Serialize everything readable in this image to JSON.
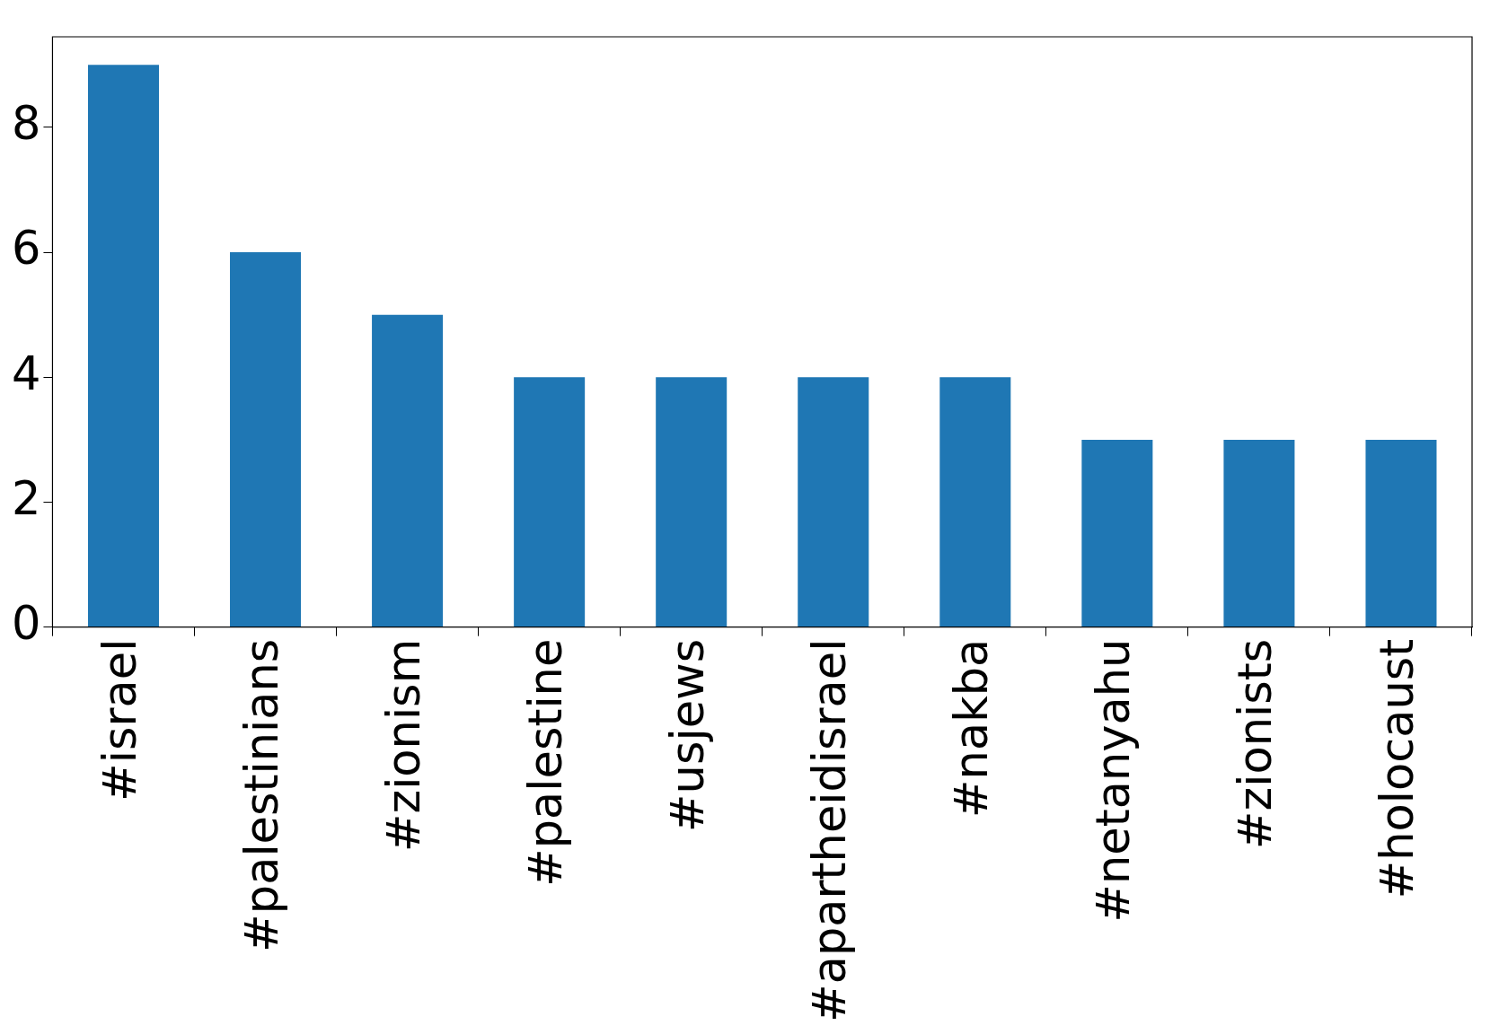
{
  "chart_data": {
    "type": "bar",
    "categories": [
      "#israel",
      "#palestinians",
      "#zionism",
      "#palestine",
      "#usjews",
      "#apartheidisrael",
      "#nakba",
      "#netanyahu",
      "#zionists",
      "#holocaust"
    ],
    "values": [
      9,
      6,
      5,
      4,
      4,
      4,
      4,
      3,
      3,
      3
    ],
    "color": "#1f77b4",
    "ylim": [
      0,
      9.45
    ],
    "yticks": [
      0,
      2,
      4,
      6,
      8
    ],
    "grid": false,
    "legend": false
  }
}
